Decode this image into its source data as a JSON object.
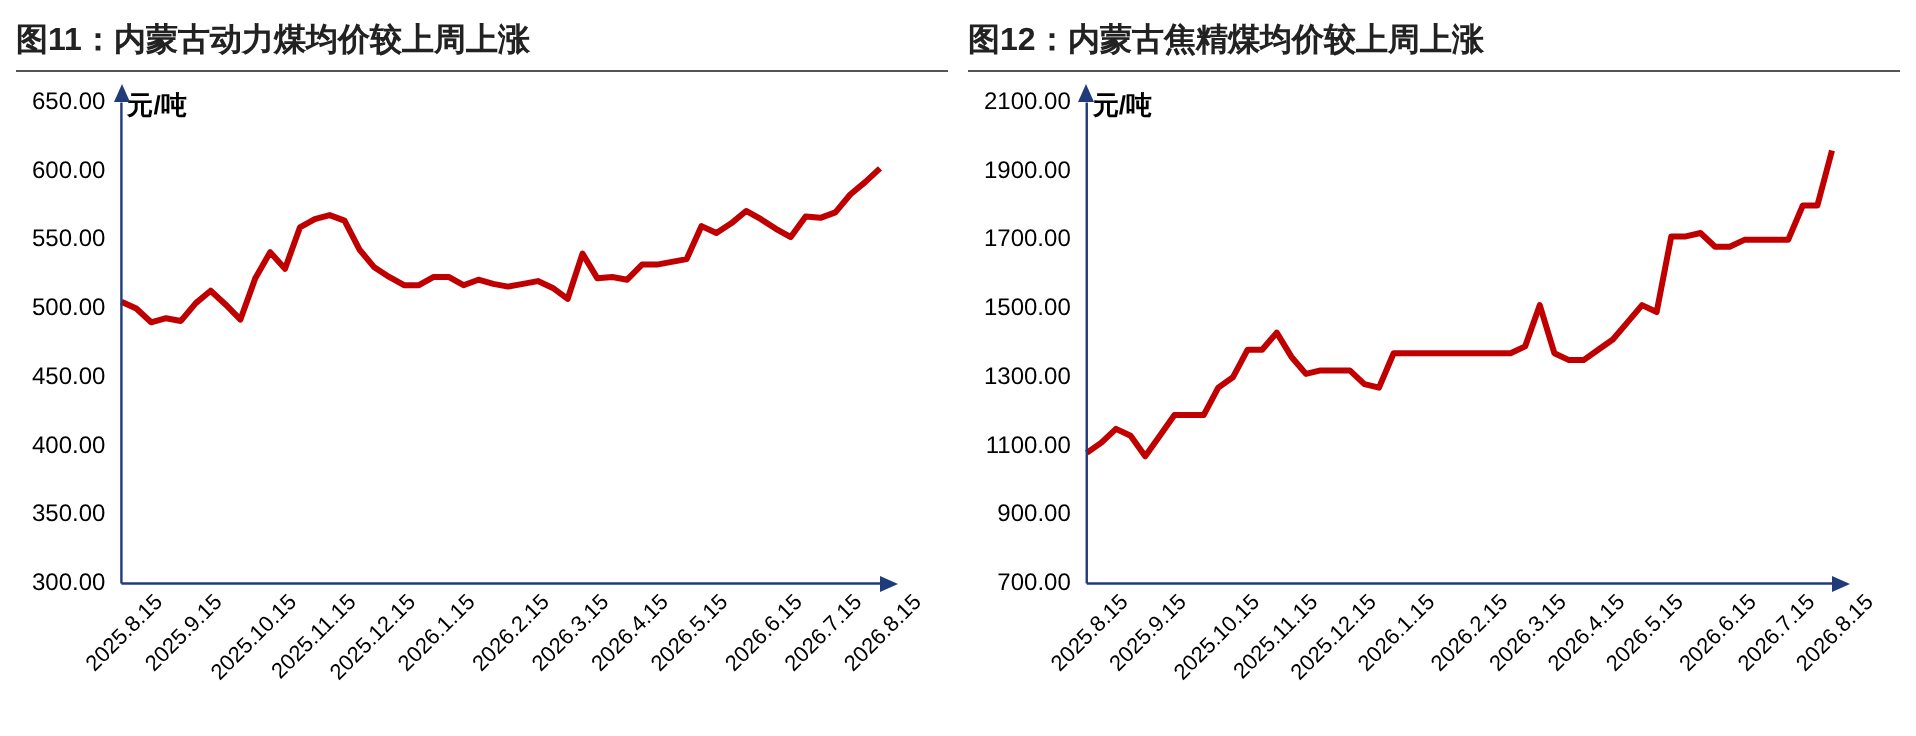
{
  "chart_data": [
    {
      "type": "line",
      "title": "图11：内蒙古动力煤均价较上周上涨",
      "ylabel": "元/吨",
      "categories": [
        "2025.8.15",
        null,
        null,
        null,
        "2025.9.15",
        null,
        null,
        null,
        null,
        "2025.10.15",
        null,
        null,
        null,
        "2025.11.15",
        null,
        null,
        null,
        "2025.12.15",
        null,
        null,
        null,
        "2026.1.15",
        null,
        null,
        null,
        null,
        "2026.2.15",
        null,
        null,
        null,
        "2026.3.15",
        null,
        null,
        null,
        "2026.4.15",
        null,
        null,
        null,
        "2026.5.15",
        null,
        null,
        null,
        null,
        "2026.6.15",
        null,
        null,
        null,
        "2026.7.15",
        null,
        null,
        null,
        "2026.8.15"
      ],
      "series": [
        {
          "color": "#c00000",
          "values": [
            505,
            500,
            490,
            493,
            491,
            504,
            513,
            503,
            492,
            522,
            541,
            529,
            559,
            565,
            568,
            564,
            543,
            530,
            523,
            517,
            517,
            523,
            523,
            517,
            521,
            518,
            516,
            518,
            520,
            515,
            507,
            540,
            522,
            523,
            521,
            532,
            532,
            534,
            536,
            560,
            555,
            562,
            571,
            565,
            558,
            552,
            567,
            566,
            570,
            583,
            592,
            602
          ]
        }
      ],
      "ylim": [
        300,
        650
      ],
      "yticks": [
        {
          "value": 300,
          "label": "300.00"
        },
        {
          "value": 350,
          "label": "350.00"
        },
        {
          "value": 400,
          "label": "400.00"
        },
        {
          "value": 450,
          "label": "450.00"
        },
        {
          "value": 500,
          "label": "500.00"
        },
        {
          "value": 550,
          "label": "550.00"
        },
        {
          "value": 600,
          "label": "600.00"
        },
        {
          "value": 650,
          "label": "650.00"
        }
      ],
      "grid": false,
      "legend": false,
      "marker": "none",
      "line_style": "solid"
    },
    {
      "type": "line",
      "title": "图12：内蒙古焦精煤均价较上周上涨",
      "ylabel": "元/吨",
      "categories": [
        "2025.8.15",
        null,
        null,
        null,
        "2025.9.15",
        null,
        null,
        null,
        null,
        "2025.10.15",
        null,
        null,
        null,
        "2025.11.15",
        null,
        null,
        null,
        "2025.12.15",
        null,
        null,
        null,
        "2026.1.15",
        null,
        null,
        null,
        null,
        "2026.2.15",
        null,
        null,
        null,
        "2026.3.15",
        null,
        null,
        null,
        "2026.4.15",
        null,
        null,
        null,
        "2026.5.15",
        null,
        null,
        null,
        null,
        "2026.6.15",
        null,
        null,
        null,
        "2026.7.15",
        null,
        null,
        null,
        "2026.8.15"
      ],
      "series": [
        {
          "color": "#c00000",
          "values": [
            1080,
            1110,
            1150,
            1130,
            1070,
            1130,
            1190,
            1190,
            1190,
            1270,
            1300,
            1380,
            1380,
            1430,
            1360,
            1310,
            1320,
            1320,
            1320,
            1280,
            1270,
            1370,
            1370,
            1370,
            1370,
            1370,
            1370,
            1370,
            1370,
            1370,
            1390,
            1510,
            1370,
            1350,
            1350,
            1380,
            1410,
            1460,
            1510,
            1490,
            1710,
            1710,
            1720,
            1680,
            1680,
            1700,
            1700,
            1700,
            1700,
            1800,
            1800,
            1960
          ]
        }
      ],
      "ylim": [
        700,
        2100
      ],
      "yticks": [
        {
          "value": 700,
          "label": "700.00"
        },
        {
          "value": 900,
          "label": "900.00"
        },
        {
          "value": 1100,
          "label": "1100.00"
        },
        {
          "value": 1300,
          "label": "1300.00"
        },
        {
          "value": 1500,
          "label": "1500.00"
        },
        {
          "value": 1700,
          "label": "1700.00"
        },
        {
          "value": 1900,
          "label": "1900.00"
        },
        {
          "value": 2100,
          "label": "2100.00"
        }
      ],
      "grid": false,
      "legend": false,
      "marker": "none",
      "line_style": "solid"
    }
  ]
}
